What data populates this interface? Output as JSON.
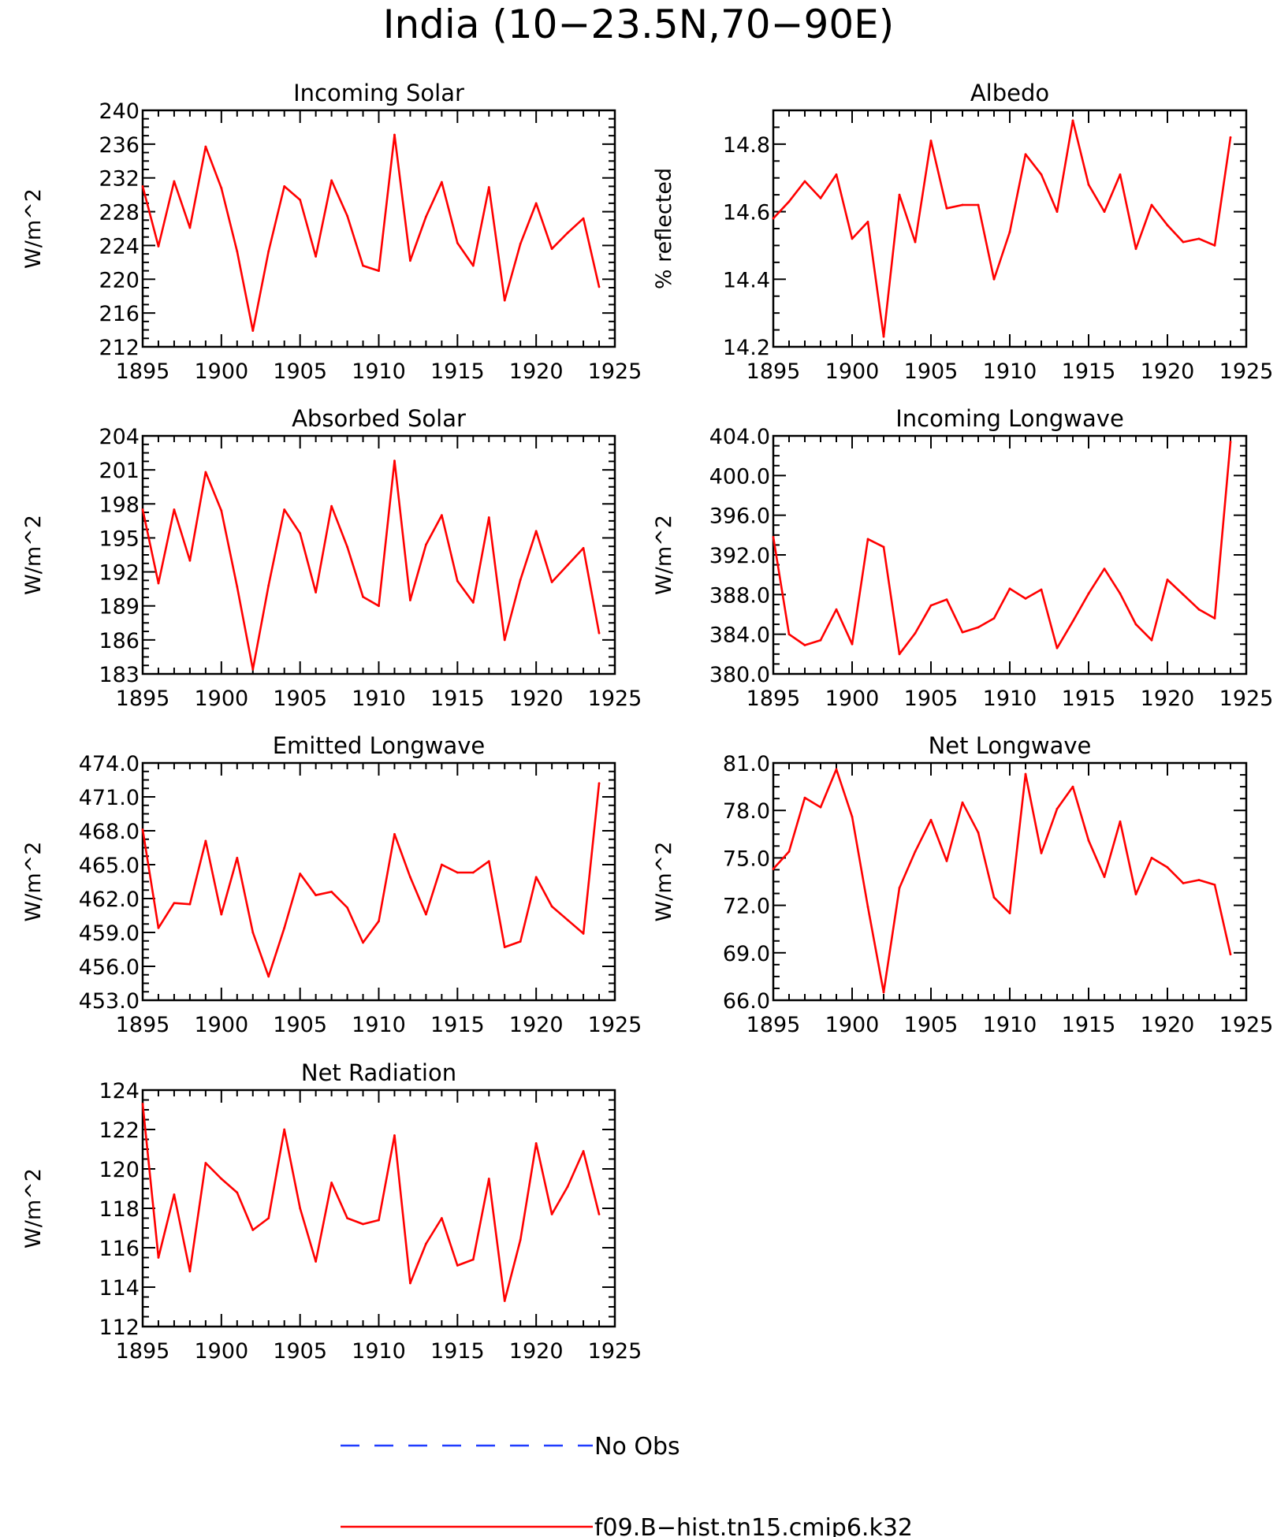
{
  "figure": {
    "title": "India (10−23.5N,70−90E)"
  },
  "legend": [
    {
      "label": "No Obs",
      "color": "#1f3cff",
      "style": "dashed"
    },
    {
      "label": "f09.B−hist.tn15.cmip6.k32",
      "color": "#ff0000",
      "style": "solid"
    }
  ],
  "chart_data": [
    {
      "type": "line",
      "title": "Incoming Solar",
      "ylabel": "W/m^2",
      "xlim": [
        1895,
        1925
      ],
      "ylim": [
        212,
        240
      ],
      "x_ticks": [
        1895,
        1900,
        1905,
        1910,
        1915,
        1920,
        1925
      ],
      "y_ticks": [
        212,
        216,
        220,
        224,
        228,
        232,
        236,
        240
      ],
      "y_tick_labels": [
        "212",
        "216",
        "220",
        "224",
        "228",
        "232",
        "236",
        "240"
      ],
      "series": [
        {
          "color": "#ff0000",
          "x": [
            1895,
            1896,
            1897,
            1898,
            1899,
            1900,
            1901,
            1902,
            1903,
            1904,
            1905,
            1906,
            1907,
            1908,
            1909,
            1910,
            1911,
            1912,
            1913,
            1914,
            1915,
            1916,
            1917,
            1918,
            1919,
            1920,
            1921,
            1922,
            1923,
            1924
          ],
          "values": [
            231.0,
            223.9,
            231.6,
            226.1,
            235.7,
            230.8,
            223.3,
            213.9,
            223.3,
            231.0,
            229.4,
            222.7,
            231.7,
            227.5,
            221.6,
            221.0,
            237.1,
            222.2,
            227.4,
            231.5,
            224.3,
            221.6,
            230.9,
            217.5,
            224.2,
            229.0,
            223.6,
            225.5,
            227.2,
            219.1
          ]
        }
      ]
    },
    {
      "type": "line",
      "title": "Albedo",
      "ylabel": "% reflected",
      "xlim": [
        1895,
        1925
      ],
      "ylim": [
        14.2,
        14.9
      ],
      "x_ticks": [
        1895,
        1900,
        1905,
        1910,
        1915,
        1920,
        1925
      ],
      "y_ticks": [
        14.2,
        14.4,
        14.6,
        14.8
      ],
      "y_tick_labels": [
        "14.2",
        "14.4",
        "14.6",
        "14.8"
      ],
      "series": [
        {
          "color": "#ff0000",
          "x": [
            1895,
            1896,
            1897,
            1898,
            1899,
            1900,
            1901,
            1902,
            1903,
            1904,
            1905,
            1906,
            1907,
            1908,
            1909,
            1910,
            1911,
            1912,
            1913,
            1914,
            1915,
            1916,
            1917,
            1918,
            1919,
            1920,
            1921,
            1922,
            1923,
            1924
          ],
          "values": [
            14.58,
            14.63,
            14.69,
            14.64,
            14.71,
            14.52,
            14.57,
            14.23,
            14.65,
            14.51,
            14.81,
            14.61,
            14.62,
            14.62,
            14.4,
            14.54,
            14.77,
            14.71,
            14.6,
            14.87,
            14.68,
            14.6,
            14.71,
            14.49,
            14.62,
            14.56,
            14.51,
            14.52,
            14.5,
            14.82
          ]
        }
      ]
    },
    {
      "type": "line",
      "title": "Absorbed Solar",
      "ylabel": "W/m^2",
      "xlim": [
        1895,
        1925
      ],
      "ylim": [
        183,
        204
      ],
      "x_ticks": [
        1895,
        1900,
        1905,
        1910,
        1915,
        1920,
        1925
      ],
      "y_ticks": [
        183,
        186,
        189,
        192,
        195,
        198,
        201,
        204
      ],
      "y_tick_labels": [
        "183",
        "186",
        "189",
        "192",
        "195",
        "198",
        "201",
        "204"
      ],
      "series": [
        {
          "color": "#ff0000",
          "x": [
            1895,
            1896,
            1897,
            1898,
            1899,
            1900,
            1901,
            1902,
            1903,
            1904,
            1905,
            1906,
            1907,
            1908,
            1909,
            1910,
            1911,
            1912,
            1913,
            1914,
            1915,
            1916,
            1917,
            1918,
            1919,
            1920,
            1921,
            1922,
            1923,
            1924
          ],
          "values": [
            197.5,
            191.0,
            197.5,
            193.0,
            200.8,
            197.4,
            190.7,
            183.4,
            190.8,
            197.5,
            195.4,
            190.2,
            197.8,
            194.2,
            189.8,
            189.0,
            201.8,
            189.5,
            194.4,
            197.0,
            191.2,
            189.3,
            196.8,
            186.0,
            191.3,
            195.6,
            191.1,
            192.6,
            194.1,
            186.6
          ]
        }
      ]
    },
    {
      "type": "line",
      "title": "Incoming Longwave",
      "ylabel": "W/m^2",
      "xlim": [
        1895,
        1925
      ],
      "ylim": [
        380,
        404
      ],
      "x_ticks": [
        1895,
        1900,
        1905,
        1910,
        1915,
        1920,
        1925
      ],
      "y_ticks": [
        380,
        384,
        388,
        392,
        396,
        400,
        404
      ],
      "y_tick_labels": [
        "380.0",
        "384.0",
        "388.0",
        "392.0",
        "396.0",
        "400.0",
        "404.0"
      ],
      "series": [
        {
          "color": "#ff0000",
          "x": [
            1895,
            1896,
            1897,
            1898,
            1899,
            1900,
            1901,
            1902,
            1903,
            1904,
            1905,
            1906,
            1907,
            1908,
            1909,
            1910,
            1911,
            1912,
            1913,
            1914,
            1915,
            1916,
            1917,
            1918,
            1919,
            1920,
            1921,
            1922,
            1923,
            1924
          ],
          "values": [
            393.8,
            384.0,
            382.9,
            383.4,
            386.5,
            383.0,
            393.6,
            392.8,
            382.0,
            384.1,
            386.9,
            387.5,
            384.2,
            384.7,
            385.6,
            388.6,
            387.6,
            388.5,
            382.6,
            385.3,
            388.1,
            390.6,
            388.1,
            385.0,
            383.4,
            389.5,
            388.0,
            386.5,
            385.6,
            403.4
          ]
        }
      ]
    },
    {
      "type": "line",
      "title": "Emitted Longwave",
      "ylabel": "W/m^2",
      "xlim": [
        1895,
        1925
      ],
      "ylim": [
        453,
        474
      ],
      "x_ticks": [
        1895,
        1900,
        1905,
        1910,
        1915,
        1920,
        1925
      ],
      "y_ticks": [
        453,
        456,
        459,
        462,
        465,
        468,
        471,
        474
      ],
      "y_tick_labels": [
        "453.0",
        "456.0",
        "459.0",
        "462.0",
        "465.0",
        "468.0",
        "471.0",
        "474.0"
      ],
      "series": [
        {
          "color": "#ff0000",
          "x": [
            1895,
            1896,
            1897,
            1898,
            1899,
            1900,
            1901,
            1902,
            1903,
            1904,
            1905,
            1906,
            1907,
            1908,
            1909,
            1910,
            1911,
            1912,
            1913,
            1914,
            1915,
            1916,
            1917,
            1918,
            1919,
            1920,
            1921,
            1922,
            1923,
            1924
          ],
          "values": [
            468.1,
            459.4,
            461.6,
            461.5,
            467.1,
            460.6,
            465.6,
            459.0,
            455.1,
            459.4,
            464.2,
            462.3,
            462.6,
            461.2,
            458.1,
            460.0,
            467.7,
            463.9,
            460.6,
            465.0,
            464.3,
            464.3,
            465.3,
            457.7,
            458.2,
            463.9,
            461.3,
            460.1,
            458.9,
            472.2
          ]
        }
      ]
    },
    {
      "type": "line",
      "title": "Net Longwave",
      "ylabel": "W/m^2",
      "xlim": [
        1895,
        1925
      ],
      "ylim": [
        66,
        81
      ],
      "x_ticks": [
        1895,
        1900,
        1905,
        1910,
        1915,
        1920,
        1925
      ],
      "y_ticks": [
        66,
        69,
        72,
        75,
        78,
        81
      ],
      "y_tick_labels": [
        "66.0",
        "69.0",
        "72.0",
        "75.0",
        "78.0",
        "81.0"
      ],
      "series": [
        {
          "color": "#ff0000",
          "x": [
            1895,
            1896,
            1897,
            1898,
            1899,
            1900,
            1901,
            1902,
            1903,
            1904,
            1905,
            1906,
            1907,
            1908,
            1909,
            1910,
            1911,
            1912,
            1913,
            1914,
            1915,
            1916,
            1917,
            1918,
            1919,
            1920,
            1921,
            1922,
            1923,
            1924
          ],
          "values": [
            74.3,
            75.4,
            78.8,
            78.2,
            80.6,
            77.6,
            71.9,
            66.5,
            73.1,
            75.4,
            77.4,
            74.8,
            78.5,
            76.6,
            72.5,
            71.5,
            80.3,
            75.3,
            78.1,
            79.5,
            76.1,
            73.8,
            77.3,
            72.7,
            75.0,
            74.4,
            73.4,
            73.6,
            73.3,
            68.9
          ]
        }
      ]
    },
    {
      "type": "line",
      "title": "Net Radiation",
      "ylabel": "W/m^2",
      "xlim": [
        1895,
        1925
      ],
      "ylim": [
        112,
        124
      ],
      "x_ticks": [
        1895,
        1900,
        1905,
        1910,
        1915,
        1920,
        1925
      ],
      "y_ticks": [
        112,
        114,
        116,
        118,
        120,
        122,
        124
      ],
      "y_tick_labels": [
        "112",
        "114",
        "116",
        "118",
        "120",
        "122",
        "124"
      ],
      "series": [
        {
          "color": "#ff0000",
          "x": [
            1895,
            1896,
            1897,
            1898,
            1899,
            1900,
            1901,
            1902,
            1903,
            1904,
            1905,
            1906,
            1907,
            1908,
            1909,
            1910,
            1911,
            1912,
            1913,
            1914,
            1915,
            1916,
            1917,
            1918,
            1919,
            1920,
            1921,
            1922,
            1923,
            1924
          ],
          "values": [
            123.3,
            115.5,
            118.7,
            114.8,
            120.3,
            119.5,
            118.8,
            116.9,
            117.5,
            122.0,
            118.0,
            115.3,
            119.3,
            117.5,
            117.2,
            117.4,
            121.7,
            114.2,
            116.2,
            117.5,
            115.1,
            115.4,
            119.5,
            113.3,
            116.4,
            121.3,
            117.7,
            119.1,
            120.9,
            117.7
          ]
        }
      ]
    }
  ]
}
